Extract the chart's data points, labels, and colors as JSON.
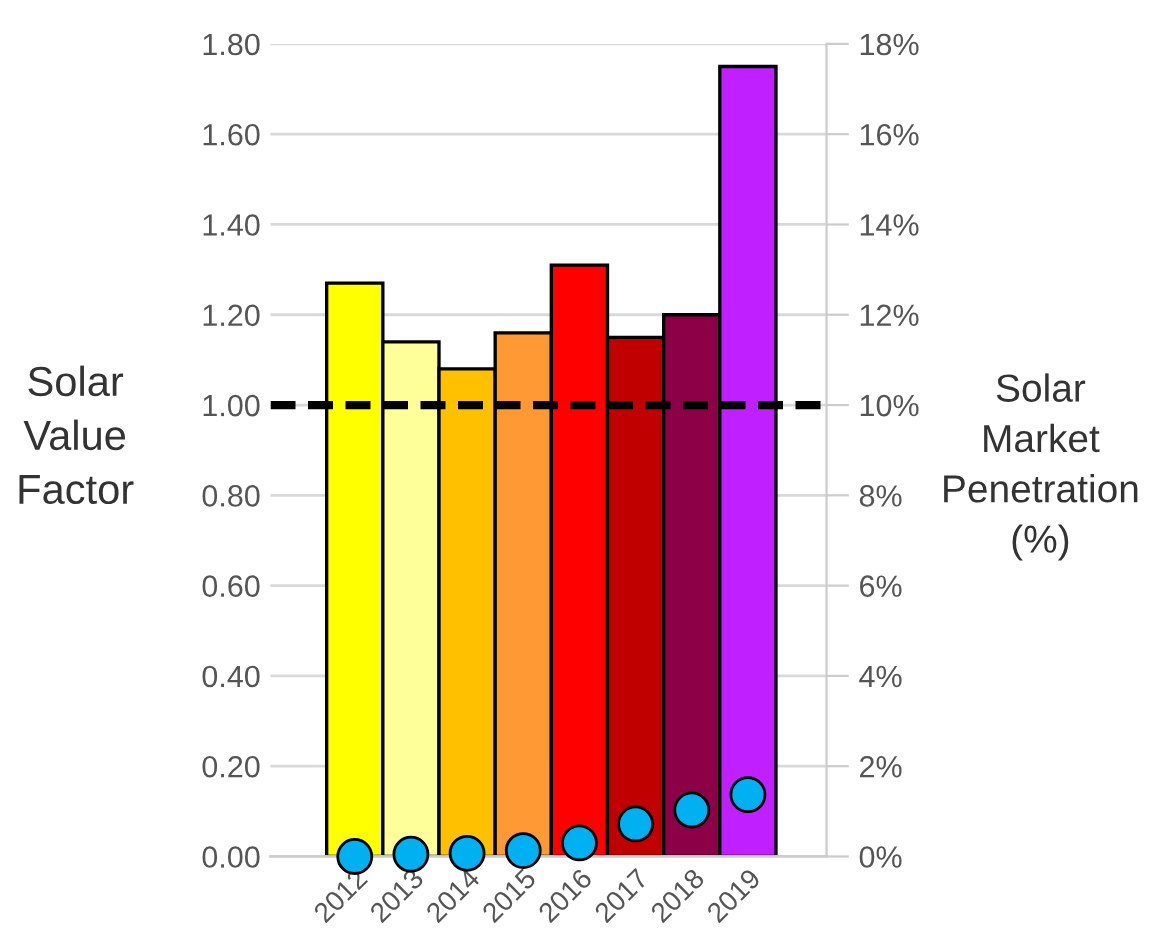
{
  "chart_data": {
    "type": "bar",
    "categories": [
      "2012",
      "2013",
      "2014",
      "2015",
      "2016",
      "2017",
      "2018",
      "2019"
    ],
    "ylabel": "Solar Value Factor",
    "y2label": "Solar Market Penetration (%)",
    "series": [
      {
        "colors": [
          "#ffff00",
          "#ffff99",
          "#ffc000",
          "#ff9933",
          "#ff0000",
          "#c00000",
          "#8b0046",
          "#c020ff"
        ],
        "values": [
          1.27,
          1.14,
          1.08,
          1.16,
          1.31,
          1.15,
          1.2,
          1.75
        ]
      },
      {
        "type": "scatter",
        "axis": "y2",
        "color": "#00b0f0",
        "values": [
          0.0,
          0.05,
          0.07,
          0.13,
          0.3,
          0.72,
          1.03,
          1.37
        ]
      }
    ],
    "ylim": [
      0,
      1.8
    ],
    "yticks": [
      {
        "value": 0,
        "label": "0.00"
      },
      {
        "value": 0.2,
        "label": "0.20"
      },
      {
        "value": 0.4,
        "label": "0.40"
      },
      {
        "value": 0.6,
        "label": "0.60"
      },
      {
        "value": 0.8,
        "label": "0.80"
      },
      {
        "value": 1,
        "label": "1.00"
      },
      {
        "value": 1.2,
        "label": "1.20"
      },
      {
        "value": 1.4,
        "label": "1.40"
      },
      {
        "value": 1.6,
        "label": "1.60"
      },
      {
        "value": 1.8,
        "label": "1.80"
      }
    ],
    "y2lim": [
      0,
      18
    ],
    "y2ticks": [
      {
        "value": 0,
        "label": "0%"
      },
      {
        "value": 2,
        "label": "2%"
      },
      {
        "value": 4,
        "label": "4%"
      },
      {
        "value": 6,
        "label": "6%"
      },
      {
        "value": 8,
        "label": "8%"
      },
      {
        "value": 10,
        "label": "10%"
      },
      {
        "value": 12,
        "label": "12%"
      },
      {
        "value": 14,
        "label": "14%"
      },
      {
        "value": 16,
        "label": "16%"
      },
      {
        "value": 18,
        "label": "18%"
      }
    ],
    "ref_lines": [
      {
        "axis": "y",
        "value": 1.0,
        "color": "#000000",
        "line_style": "dashed"
      }
    ],
    "grid": "y",
    "marker": "circle"
  }
}
